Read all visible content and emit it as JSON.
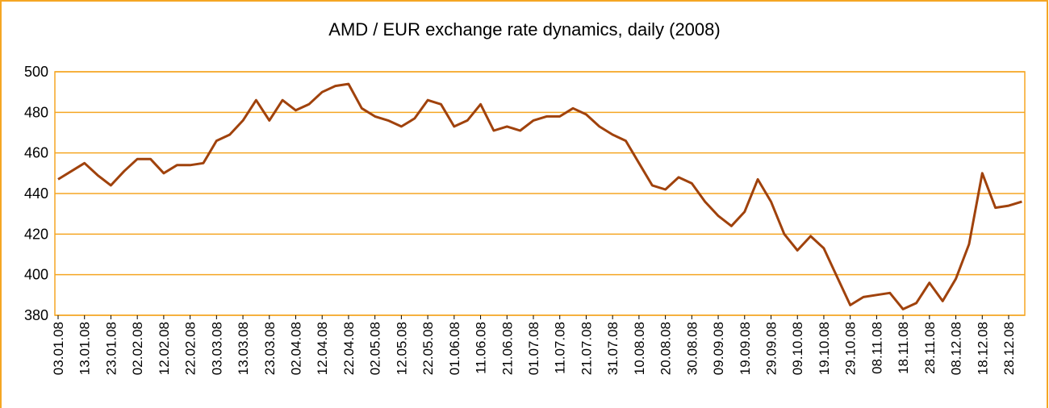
{
  "chart_data": {
    "type": "line",
    "title": "AMD / EUR exchange rate dynamics, daily (2008)",
    "categories": [
      "03.01.08",
      null,
      "13.01.08",
      null,
      "23.01.08",
      null,
      "02.02.08",
      null,
      "12.02.08",
      null,
      "22.02.08",
      null,
      "03.03.08",
      null,
      "13.03.08",
      null,
      "23.03.08",
      null,
      "02.04.08",
      null,
      "12.04.08",
      null,
      "22.04.08",
      null,
      "02.05.08",
      null,
      "12.05.08",
      null,
      "22.05.08",
      null,
      "01.06.08",
      null,
      "11.06.08",
      null,
      "21.06.08",
      null,
      "01.07.08",
      null,
      "11.07.08",
      null,
      "21.07.08",
      null,
      "31.07.08",
      null,
      "10.08.08",
      null,
      "20.08.08",
      null,
      "30.08.08",
      null,
      "09.09.08",
      null,
      "19.09.08",
      null,
      "29.09.08",
      null,
      "09.10.08",
      null,
      "19.10.08",
      null,
      "29.10.08",
      null,
      "08.11.08",
      null,
      "18.11.08",
      null,
      "28.11.08",
      null,
      "08.12.08",
      null,
      "18.12.08",
      null,
      "28.12.08",
      null
    ],
    "series": [
      {
        "name": "AMD / EUR",
        "color": "#a0420c",
        "values": [
          447,
          451,
          455,
          449,
          444,
          451,
          457,
          457,
          450,
          454,
          454,
          455,
          466,
          469,
          476,
          486,
          476,
          486,
          481,
          484,
          490,
          493,
          494,
          482,
          478,
          476,
          473,
          477,
          486,
          484,
          473,
          476,
          484,
          471,
          473,
          471,
          476,
          478,
          478,
          482,
          479,
          473,
          469,
          466,
          455,
          444,
          442,
          448,
          445,
          436,
          429,
          424,
          431,
          447,
          436,
          420,
          412,
          419,
          413,
          399,
          385,
          389,
          390,
          391,
          383,
          386,
          396,
          387,
          398,
          415,
          450,
          433,
          434,
          436
        ]
      }
    ],
    "ylim": [
      380,
      500
    ],
    "yticks": [
      380,
      400,
      420,
      440,
      460,
      480,
      500
    ],
    "grid": true,
    "grid_color": "#f5a623"
  }
}
